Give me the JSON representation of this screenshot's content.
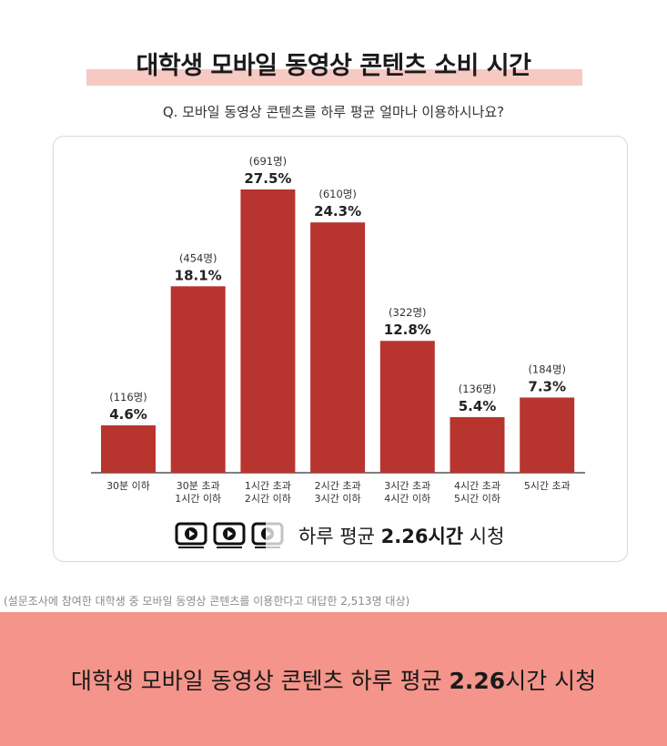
{
  "header": {
    "title": "대학생 모바일 동영상 콘텐츠 소비 시간",
    "subtitle": "Q. 모바일 동영상 콘텐츠를 하루 평균 얼마나 이용하시나요?"
  },
  "chart_data": {
    "type": "bar",
    "title": "대학생 모바일 동영상 콘텐츠 소비 시간",
    "categories": [
      [
        "30분 이하"
      ],
      [
        "30분 초과",
        "1시간 이하"
      ],
      [
        "1시간 초과",
        "2시간 이하"
      ],
      [
        "2시간 초과",
        "3시간 이하"
      ],
      [
        "3시간 초과",
        "4시간 이하"
      ],
      [
        "4시간 초과",
        "5시간 이하"
      ],
      [
        "5시간 초과"
      ]
    ],
    "values": [
      4.6,
      18.1,
      27.5,
      24.3,
      12.8,
      5.4,
      7.3
    ],
    "value_labels": [
      "4.6%",
      "18.1%",
      "27.5%",
      "24.3%",
      "12.8%",
      "5.4%",
      "7.3%"
    ],
    "counts": [
      "(116명)",
      "(454명)",
      "(691명)",
      "(610명)",
      "(322명)",
      "(136명)",
      "(184명)"
    ],
    "ylim": [
      0,
      27.5
    ],
    "grid": false,
    "bar_color": "#b8342f"
  },
  "summary": {
    "prefix": "하루 평균 ",
    "value": "2.26시간",
    "suffix": " 시청",
    "icon_names": [
      "play-icon",
      "play-icon",
      "play-icon-faded"
    ]
  },
  "footnote": "(설문조사에 참여한 대학생 중 모바일 동영상 콘텐츠를 이용한다고 대답한 2,513명 대상)",
  "banner": {
    "prefix": "대학생 모바일 동영상 콘텐츠 하루 평균 ",
    "value": "2.26",
    "suffix": "시간 시청"
  },
  "colors": {
    "title_highlight": "#f7c9c3",
    "bottom_band": "#f5948a"
  }
}
